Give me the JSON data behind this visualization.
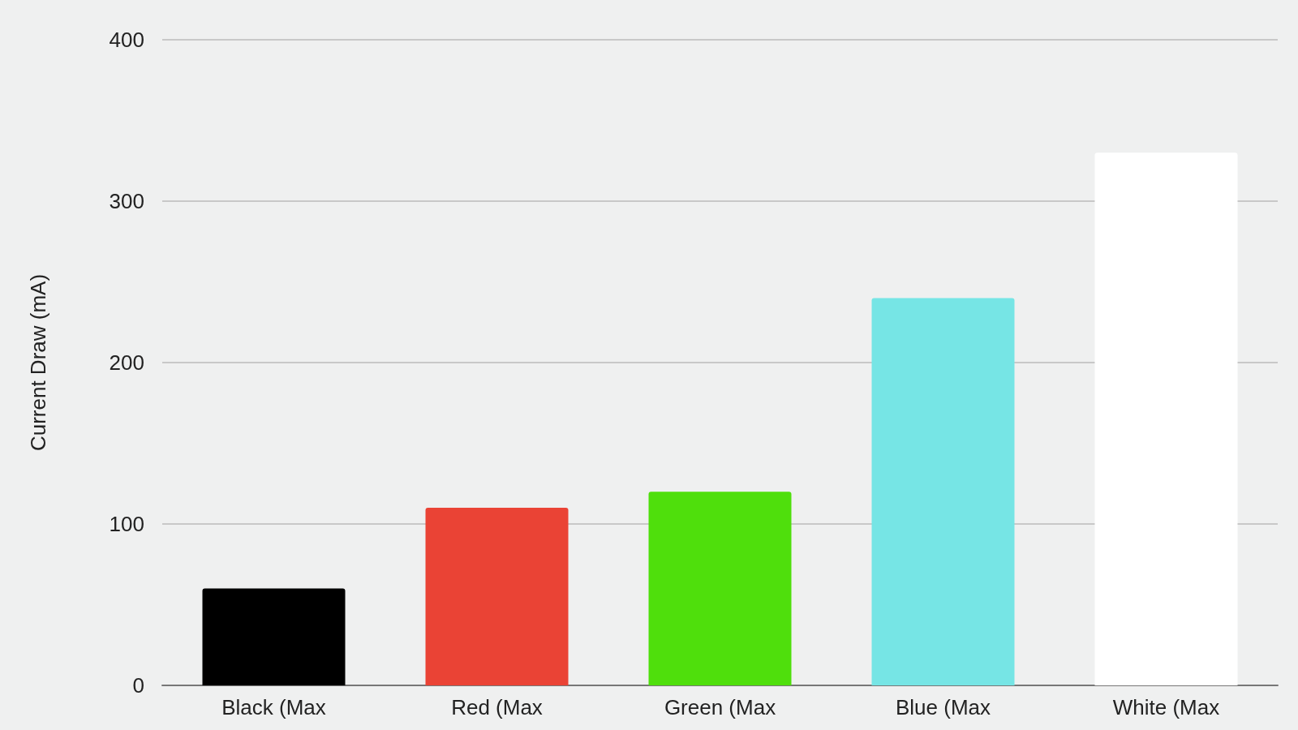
{
  "chart_data": {
    "type": "bar",
    "ylabel": "Current Draw (mA)",
    "categories": [
      "Black (Max",
      "Red (Max",
      "Green (Max",
      "Blue (Max",
      "White (Max"
    ],
    "values": [
      60,
      110,
      120,
      240,
      330
    ],
    "colors": [
      "#000000",
      "#ea4335",
      "#4fdf0c",
      "#76e5e5",
      "#ffffff"
    ],
    "ylim": [
      0,
      400
    ],
    "yticks": [
      0,
      100,
      200,
      300,
      400
    ],
    "grid": true
  }
}
